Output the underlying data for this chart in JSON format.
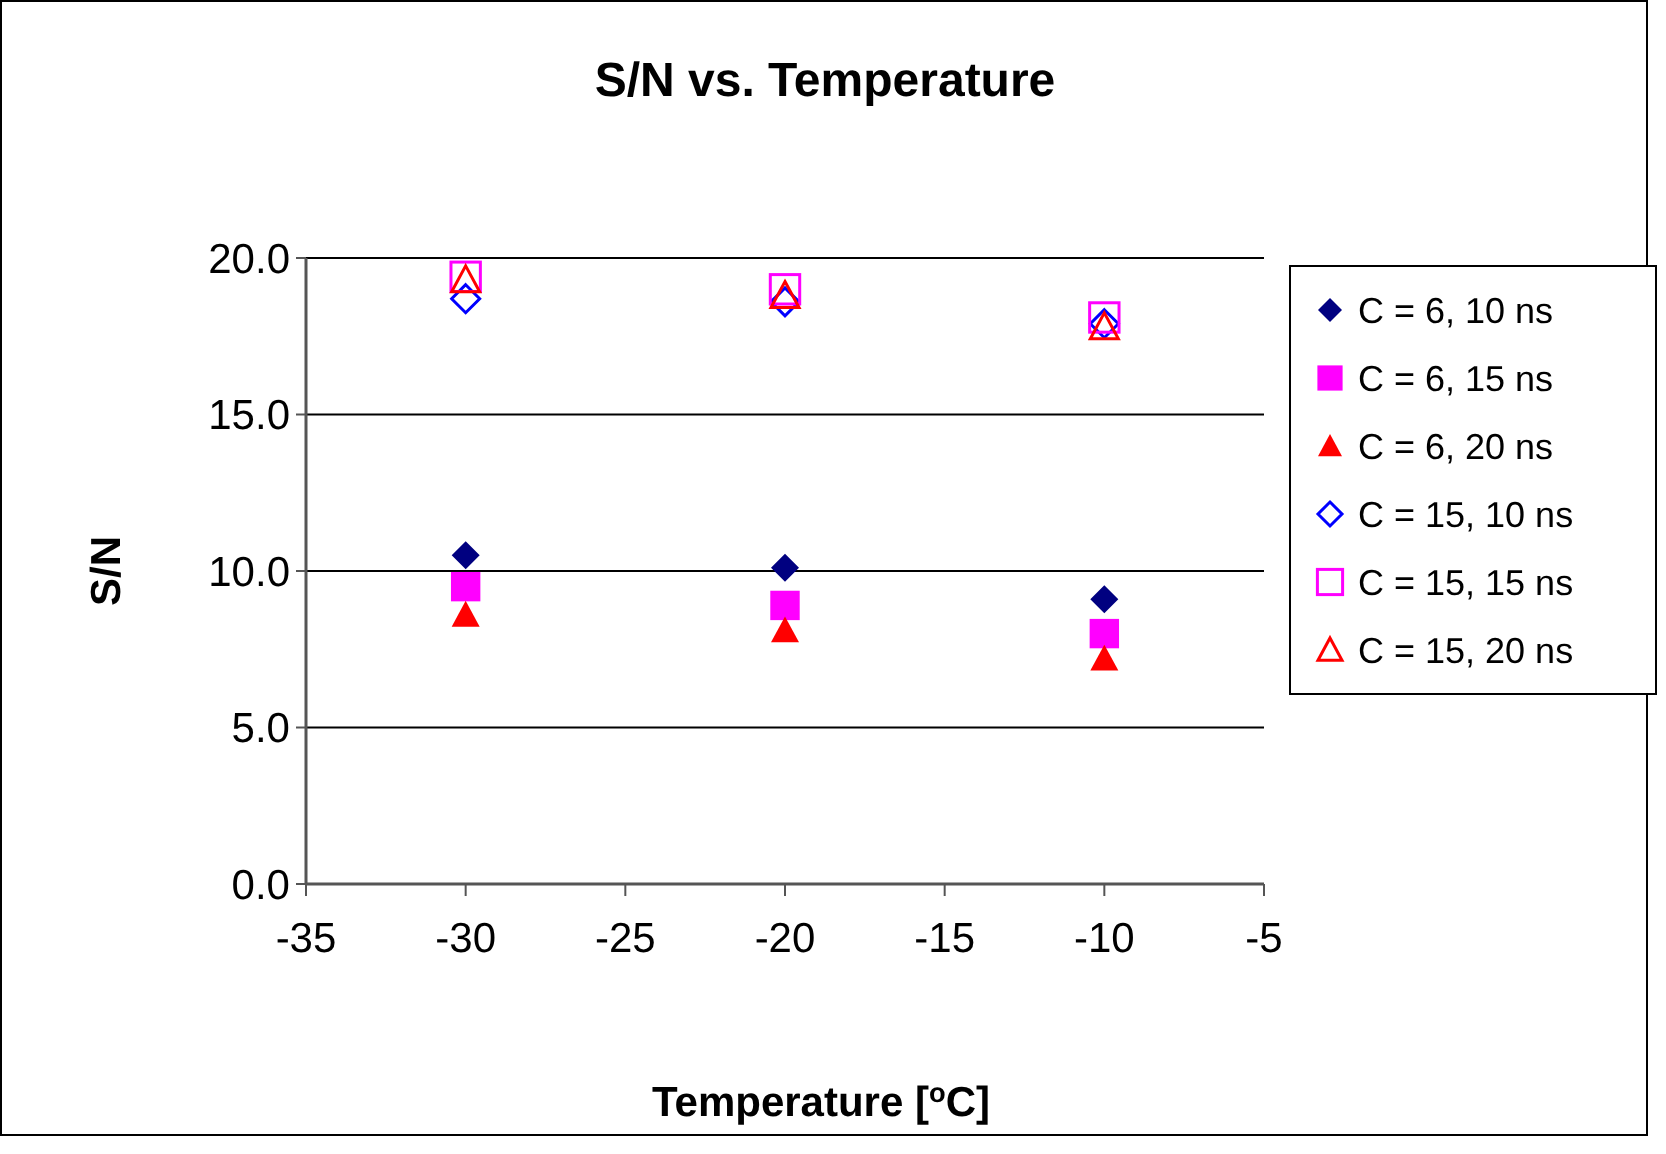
{
  "chart_data": {
    "type": "scatter",
    "title": "S/N vs. Temperature",
    "xlabel": "Temperature [$^{o}$C]",
    "ylabel": "S/N",
    "x": [
      -30,
      -20,
      -10
    ],
    "xlim": [
      -35,
      -5
    ],
    "xticks": [
      -35,
      -30,
      -25,
      -20,
      -15,
      -10,
      -5
    ],
    "ylim": [
      0,
      20
    ],
    "yticks": [
      {
        "value": 0,
        "label": "0.0"
      },
      {
        "value": 5,
        "label": "5.0"
      },
      {
        "value": 10,
        "label": "10.0"
      },
      {
        "value": 15,
        "label": "15.0"
      },
      {
        "value": 20,
        "label": "20.0"
      }
    ],
    "grid": "y",
    "legend": "right",
    "series": [
      {
        "name": "C = 6, 10 ns",
        "color": "#000080",
        "marker": "diamond",
        "values": [
          10.5,
          10.1,
          9.1
        ]
      },
      {
        "name": "C = 6, 15 ns",
        "color": "#ff00ff",
        "marker": "square",
        "values": [
          9.5,
          8.9,
          8.0
        ]
      },
      {
        "name": "C = 6, 20 ns",
        "color": "#ff0000",
        "marker": "triangle",
        "values": [
          8.6,
          8.1,
          7.2
        ]
      },
      {
        "name": "C = 15, 10 ns",
        "color": "#0000ff",
        "marker": "diamond",
        "values": [
          18.7,
          18.6,
          17.9
        ]
      },
      {
        "name": "C = 15, 15 ns",
        "color": "#ff00ff",
        "marker": "square",
        "values": [
          19.4,
          19.0,
          18.1
        ]
      },
      {
        "name": "C = 15, 20 ns",
        "color": "#ff0000",
        "marker": "triangle",
        "values": [
          19.3,
          18.8,
          17.8
        ]
      }
    ]
  }
}
